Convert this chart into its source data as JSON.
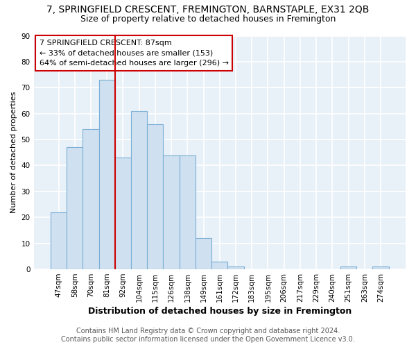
{
  "title": "7, SPRINGFIELD CRESCENT, FREMINGTON, BARNSTAPLE, EX31 2QB",
  "subtitle": "Size of property relative to detached houses in Fremington",
  "xlabel": "Distribution of detached houses by size in Fremington",
  "ylabel": "Number of detached properties",
  "bar_color": "#cfe0f0",
  "bar_edge_color": "#7aafd4",
  "categories": [
    "47sqm",
    "58sqm",
    "70sqm",
    "81sqm",
    "92sqm",
    "104sqm",
    "115sqm",
    "126sqm",
    "138sqm",
    "149sqm",
    "161sqm",
    "172sqm",
    "183sqm",
    "195sqm",
    "206sqm",
    "217sqm",
    "229sqm",
    "240sqm",
    "251sqm",
    "263sqm",
    "274sqm"
  ],
  "values": [
    22,
    47,
    54,
    73,
    43,
    61,
    56,
    44,
    44,
    12,
    3,
    1,
    0,
    0,
    0,
    0,
    0,
    0,
    1,
    0,
    1
  ],
  "ylim": [
    0,
    90
  ],
  "yticks": [
    0,
    10,
    20,
    30,
    40,
    50,
    60,
    70,
    80,
    90
  ],
  "vline_x": 3.5,
  "vline_color": "#cc0000",
  "annotation_text": "7 SPRINGFIELD CRESCENT: 87sqm\n← 33% of detached houses are smaller (153)\n64% of semi-detached houses are larger (296) →",
  "annotation_box_color": "#ffffff",
  "annotation_box_edge_color": "#cc0000",
  "footer_line1": "Contains HM Land Registry data © Crown copyright and database right 2024.",
  "footer_line2": "Contains public sector information licensed under the Open Government Licence v3.0.",
  "background_color": "#ffffff",
  "plot_bg_color": "#e8f0f8",
  "grid_color": "#ffffff",
  "title_fontsize": 10,
  "subtitle_fontsize": 9,
  "xlabel_fontsize": 9,
  "ylabel_fontsize": 8,
  "tick_fontsize": 7.5,
  "annotation_fontsize": 8,
  "footer_fontsize": 7
}
